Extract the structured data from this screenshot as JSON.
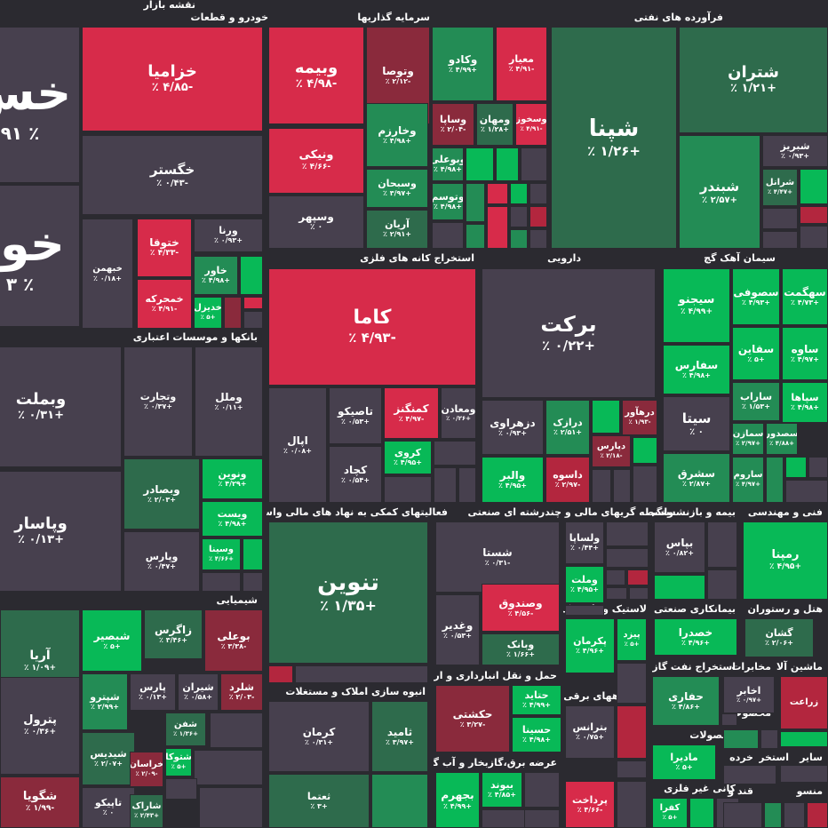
{
  "map_title": "نقشه بازار",
  "colors": {
    "background": "#2b2a30",
    "neutral": "#47404e",
    "up_weak": "#2e6b4c",
    "up_mid": "#238c55",
    "up_strong": "#08b957",
    "down_weak": "#8a2a3c",
    "down_mid": "#b3263e",
    "down_strong": "#d72b4a"
  },
  "chart_data": {
    "type": "treemap",
    "title": "نقشه بازار",
    "sectors": [
      {
        "name": "خودرو و قطعات",
        "tiles": [
          {
            "symbol": "خس",
            "change": "٪ ۹۱",
            "tone": "neutral"
          },
          {
            "symbol": "خود",
            "change": "٪ ۳",
            "tone": "neutral"
          },
          {
            "symbol": "خزامیا",
            "change": "-۴/۸۵ ٪",
            "tone": "down_strong"
          },
          {
            "symbol": "خگستر",
            "change": "-۰/۴۳ ٪",
            "tone": "neutral"
          },
          {
            "symbol": "خبهمن",
            "change": "+۰/۱۸ ٪",
            "tone": "neutral"
          },
          {
            "symbol": "ختوقا",
            "change": "-۴/۳۳ ٪",
            "tone": "down_strong"
          },
          {
            "symbol": "ورنا",
            "change": "+۰/۹۳ ٪",
            "tone": "neutral"
          },
          {
            "symbol": "خمحرکه",
            "change": "-۴/۹۱ ٪",
            "tone": "down_strong"
          },
          {
            "symbol": "خاور",
            "change": "+۴/۹۸ ٪",
            "tone": "up_mid"
          },
          {
            "symbol": "خدیزل",
            "change": "+۵ ٪",
            "tone": "up_strong"
          }
        ]
      },
      {
        "name": "سرمایه گذاریها",
        "tiles": [
          {
            "symbol": "وبیمه",
            "change": "-۴/۹۸ ٪",
            "tone": "down_strong"
          },
          {
            "symbol": "ونیکی",
            "change": "-۴/۶۶ ٪",
            "tone": "down_strong"
          },
          {
            "symbol": "وسپهر",
            "change": "۰ ٪",
            "tone": "neutral"
          },
          {
            "symbol": "وتوصا",
            "change": "-۲/۱۲ ٪",
            "tone": "down_weak"
          },
          {
            "symbol": "وکادو",
            "change": "+۴/۹۹ ٪",
            "tone": "up_mid"
          },
          {
            "symbol": "معیار",
            "change": "-۴/۹۱ ٪",
            "tone": "down_strong"
          },
          {
            "symbol": "وخارزم",
            "change": "+۴/۹۸ ٪",
            "tone": "up_mid"
          },
          {
            "symbol": "وساپا",
            "change": "-۲/۰۴ ٪",
            "tone": "down_weak"
          },
          {
            "symbol": "ومهان",
            "change": "+۱/۲۸ ٪",
            "tone": "up_weak"
          },
          {
            "symbol": "وسخوز",
            "change": "-۴/۹۱ ٪",
            "tone": "down_strong"
          },
          {
            "symbol": "وسبحان",
            "change": "+۳/۹۷ ٪",
            "tone": "up_mid"
          },
          {
            "symbol": "وبوعلی",
            "change": "+۴/۹۸ ٪",
            "tone": "up_mid"
          },
          {
            "symbol": "وتوسم",
            "change": "+۴/۹۸ ٪",
            "tone": "up_mid"
          },
          {
            "symbol": "آریان",
            "change": "+۲/۹۱ ٪",
            "tone": "up_weak"
          }
        ]
      },
      {
        "name": "فرآورده های نفتی",
        "tiles": [
          {
            "symbol": "شپنا",
            "change": "+۱/۲۶ ٪",
            "tone": "up_weak"
          },
          {
            "symbol": "شتران",
            "change": "+۱/۲۱ ٪",
            "tone": "up_weak"
          },
          {
            "symbol": "شبندر",
            "change": "+۲/۵۷ ٪",
            "tone": "up_mid"
          },
          {
            "symbol": "شبریز",
            "change": "+۰/۹۳ ٪",
            "tone": "neutral"
          },
          {
            "symbol": "شرانل",
            "change": "+۴/۴۷ ٪",
            "tone": "up_weak"
          }
        ]
      },
      {
        "name": "استخراج کانه های فلزی",
        "tiles": [
          {
            "symbol": "کاما",
            "change": "-۴/۹۳ ٪",
            "tone": "down_strong"
          },
          {
            "symbol": "اپال",
            "change": "+۰/۰۸ ٪",
            "tone": "neutral"
          },
          {
            "symbol": "تاصیکو",
            "change": "+۰/۵۳ ٪",
            "tone": "neutral"
          },
          {
            "symbol": "کمنگنز",
            "change": "-۴/۹۷ ٪",
            "tone": "down_strong"
          },
          {
            "symbol": "ومعادن",
            "change": "+۰/۲۶ ٪",
            "tone": "neutral"
          },
          {
            "symbol": "کچاد",
            "change": "+۰/۵۴ ٪",
            "tone": "neutral"
          },
          {
            "symbol": "کروی",
            "change": "+۴/۹۵ ٪",
            "tone": "up_strong"
          }
        ]
      },
      {
        "name": "دارویی",
        "tiles": [
          {
            "symbol": "برکت",
            "change": "+۰/۲۲ ٪",
            "tone": "neutral"
          },
          {
            "symbol": "دزهراوی",
            "change": "+۰/۹۳ ٪",
            "tone": "neutral"
          },
          {
            "symbol": "درازک",
            "change": "+۲/۵۱ ٪",
            "tone": "up_mid"
          },
          {
            "symbol": "درهآور",
            "change": "-۱/۹۳ ٪",
            "tone": "down_weak"
          },
          {
            "symbol": "دپارس",
            "change": "-۲/۱۸ ٪",
            "tone": "down_weak"
          },
          {
            "symbol": "والبر",
            "change": "+۴/۹۵ ٪",
            "tone": "up_strong"
          },
          {
            "symbol": "داسوه",
            "change": "-۲/۹۷ ٪",
            "tone": "down_mid"
          }
        ]
      },
      {
        "name": "سیمان آهک گچ",
        "tiles": [
          {
            "symbol": "سیجنو",
            "change": "+۴/۹۹ ٪",
            "tone": "up_strong"
          },
          {
            "symbol": "سصوفی",
            "change": "+۴/۹۳ ٪",
            "tone": "up_strong"
          },
          {
            "symbol": "سهگمت",
            "change": "+۴/۷۳ ٪",
            "tone": "up_strong"
          },
          {
            "symbol": "سفارس",
            "change": "+۴/۹۸ ٪",
            "tone": "up_strong"
          },
          {
            "symbol": "سقاین",
            "change": "+۵ ٪",
            "tone": "up_strong"
          },
          {
            "symbol": "ساوه",
            "change": "+۴/۹۷ ٪",
            "tone": "up_strong"
          },
          {
            "symbol": "سیتا",
            "change": "۰ ٪",
            "tone": "neutral"
          },
          {
            "symbol": "ساراب",
            "change": "+۱/۵۳ ٪",
            "tone": "up_mid"
          },
          {
            "symbol": "سپاها",
            "change": "+۴/۹۸ ٪",
            "tone": "up_strong"
          },
          {
            "symbol": "سمازن",
            "change": "+۲/۹۷ ٪",
            "tone": "up_mid"
          },
          {
            "symbol": "سصدور",
            "change": "+۴/۸۸ ٪",
            "tone": "up_mid"
          },
          {
            "symbol": "سشرق",
            "change": "+۲/۸۷ ٪",
            "tone": "up_mid"
          },
          {
            "symbol": "ساروم",
            "change": "+۴/۹۷ ٪",
            "tone": "up_mid"
          }
        ]
      },
      {
        "name": "بانکها و موسسات اعتباری",
        "tiles": [
          {
            "symbol": "وبملت",
            "change": "+۰/۳۱ ٪",
            "tone": "neutral"
          },
          {
            "symbol": "وپاسار",
            "change": "+۰/۱۳ ٪",
            "tone": "neutral"
          },
          {
            "symbol": "وتجارت",
            "change": "+۰/۳۷ ٪",
            "tone": "neutral"
          },
          {
            "symbol": "وملل",
            "change": "+۰/۱۱ ٪",
            "tone": "neutral"
          },
          {
            "symbol": "وبصادر",
            "change": "+۲/۰۳ ٪",
            "tone": "up_weak"
          },
          {
            "symbol": "ونوین",
            "change": "+۴/۲۹ ٪",
            "tone": "up_strong"
          },
          {
            "symbol": "ویست",
            "change": "+۴/۹۸ ٪",
            "tone": "up_strong"
          },
          {
            "symbol": "وپارس",
            "change": "+۰/۴۷ ٪",
            "tone": "neutral"
          },
          {
            "symbol": "وسینا",
            "change": "+۴/۶۶ ٪",
            "tone": "up_strong"
          }
        ]
      },
      {
        "name": "فعالیتهای کمکی به نهاد های مالی واسط",
        "tiles": [
          {
            "symbol": "تنوین",
            "change": "+۱/۳۵ ٪",
            "tone": "up_weak"
          }
        ]
      },
      {
        "name": "چندرشته ای صنعتی",
        "tiles": [
          {
            "symbol": "شستا",
            "change": "-۰/۳۱ ٪",
            "tone": "neutral"
          },
          {
            "symbol": "وغدیر",
            "change": "+۰/۵۳ ٪",
            "tone": "neutral"
          },
          {
            "symbol": "وصندوق",
            "change": "-۴/۵۶ ٪",
            "tone": "down_strong"
          },
          {
            "symbol": "وبانک",
            "change": "+۱/۶۶ ٪",
            "tone": "up_weak"
          }
        ]
      },
      {
        "name": "واسطه گریهای مالی و",
        "tiles": [
          {
            "symbol": "ولساپا",
            "change": "+۰/۴۴ ٪",
            "tone": "neutral"
          },
          {
            "symbol": "وملت",
            "change": "+۴/۹۵ ٪",
            "tone": "up_strong"
          }
        ]
      },
      {
        "name": "بیمه و بازنشستگی",
        "tiles": [
          {
            "symbol": "بپاس",
            "change": "+۰/۸۲ ٪",
            "tone": "neutral"
          }
        ]
      },
      {
        "name": "فنی و مهندسی",
        "tiles": [
          {
            "symbol": "رمپنا",
            "change": "+۴/۹۵ ٪",
            "tone": "up_strong"
          }
        ]
      },
      {
        "name": "شیمیایی",
        "tiles": [
          {
            "symbol": "آریا",
            "change": "+۱/۰۹ ٪",
            "tone": "up_weak"
          },
          {
            "symbol": "شبصیر",
            "change": "+۵ ٪",
            "tone": "up_strong"
          },
          {
            "symbol": "زاگرس",
            "change": "+۳/۴۶ ٪",
            "tone": "up_weak"
          },
          {
            "symbol": "بوعلی",
            "change": "-۳/۳۸ ٪",
            "tone": "down_weak"
          },
          {
            "symbol": "پترول",
            "change": "+۰/۳۶ ٪",
            "tone": "neutral"
          },
          {
            "symbol": "شپترو",
            "change": "+۲/۹۹ ٪",
            "tone": "up_mid"
          },
          {
            "symbol": "پارس",
            "change": "+۰/۱۳ ٪",
            "tone": "neutral"
          },
          {
            "symbol": "شیران",
            "change": "+۰/۵۸ ٪",
            "tone": "neutral"
          },
          {
            "symbol": "شلرد",
            "change": "-۲/۰۳ ٪",
            "tone": "down_weak"
          },
          {
            "symbol": "شفن",
            "change": "+۱/۳۶ ٪",
            "tone": "up_weak"
          },
          {
            "symbol": "شیدیس",
            "change": "+۲/۰۷ ٪",
            "tone": "up_weak"
          },
          {
            "symbol": "شتوکا",
            "change": "+۵ ٪",
            "tone": "up_strong"
          },
          {
            "symbol": "خراسان",
            "change": "-۲/۰۹ ٪",
            "tone": "down_weak"
          },
          {
            "symbol": "شگویا",
            "change": "-۱/۹۹ ٪",
            "tone": "down_weak"
          },
          {
            "symbol": "تاپیکو",
            "change": "۰ ٪",
            "tone": "neutral"
          },
          {
            "symbol": "شاراک",
            "change": "+۲/۴۳ ٪",
            "tone": "up_weak"
          }
        ]
      },
      {
        "name": "لاستیک و پلاستیک",
        "tiles": [
          {
            "symbol": "پکرمان",
            "change": "+۴/۹۶ ٪",
            "tone": "up_strong"
          },
          {
            "symbol": "پیزد",
            "change": "+۵ ٪",
            "tone": "up_strong"
          }
        ]
      },
      {
        "name": "بیمانکاری صنعتی",
        "tiles": [
          {
            "symbol": "خصدرا",
            "change": "+۴/۹۶ ٪",
            "tone": "up_strong"
          }
        ]
      },
      {
        "name": "هتل و رستوران",
        "tiles": [
          {
            "symbol": "گشان",
            "change": "+۲/۰۶ ٪",
            "tone": "up_weak"
          }
        ]
      },
      {
        "name": "انبوه سازی املاک و مستغلات",
        "tiles": [
          {
            "symbol": "کرمان",
            "change": "+۰/۳۱ ٪",
            "tone": "neutral"
          },
          {
            "symbol": "ثامید",
            "change": "+۳/۹۷ ٪",
            "tone": "up_weak"
          },
          {
            "symbol": "ثعتما",
            "change": "+۳ ٪",
            "tone": "up_weak"
          }
        ]
      },
      {
        "name": "حمل و نقل انبارداری و ارتباطات",
        "tiles": [
          {
            "symbol": "حکشتی",
            "change": "-۳/۲۷ ٪",
            "tone": "down_weak"
          },
          {
            "symbol": "حتاید",
            "change": "+۴/۹۹ ٪",
            "tone": "up_strong"
          },
          {
            "symbol": "حسینا",
            "change": "+۴/۹۸ ٪",
            "tone": "up_strong"
          }
        ]
      },
      {
        "name": "عرضه برق،گازبخار و آب گرم",
        "tiles": [
          {
            "symbol": "بجهرم",
            "change": "+۴/۹۹ ٪",
            "tone": "up_strong"
          },
          {
            "symbol": "بیوند",
            "change": "+۴/۸۵ ٪",
            "tone": "up_strong"
          }
        ]
      },
      {
        "name": "دستگاههای برقی",
        "tiles": [
          {
            "symbol": "بترانس",
            "change": "+۰/۷۵ ٪",
            "tone": "neutral"
          }
        ]
      },
      {
        "name": "رایانه",
        "tiles": [
          {
            "symbol": "پرداخت",
            "change": "-۴/۶۶ ٪",
            "tone": "down_strong"
          }
        ]
      },
      {
        "name": "استخراج نفت گاز",
        "tiles": [
          {
            "symbol": "حفاری",
            "change": "+۴/۸۶ ٪",
            "tone": "up_mid"
          }
        ]
      },
      {
        "name": "محصولات",
        "tiles": [
          {
            "symbol": "مادیرا",
            "change": "+۵ ٪",
            "tone": "up_strong"
          }
        ]
      },
      {
        "name": "کانی غیر فلزی",
        "tiles": [
          {
            "symbol": "کفرا",
            "change": "+۵ ٪",
            "tone": "up_strong"
          }
        ]
      },
      {
        "name": "مخابرات",
        "tiles": [
          {
            "symbol": "اخابر",
            "change": "+۰/۹۷ ٪",
            "tone": "neutral"
          }
        ]
      },
      {
        "name": "ماشین آلات",
        "tiles": []
      },
      {
        "name": "محصولات",
        "tiles": []
      },
      {
        "name": "زراعت و",
        "tiles": [
          {
            "symbol": "زراعت",
            "change": "",
            "tone": "down_mid"
          }
        ]
      },
      {
        "name": "خرده",
        "tiles": []
      },
      {
        "name": "استخراج",
        "tiles": []
      },
      {
        "name": "سایر",
        "tiles": []
      },
      {
        "name": "قند و",
        "tiles": []
      },
      {
        "name": "منسو",
        "tiles": []
      }
    ]
  }
}
